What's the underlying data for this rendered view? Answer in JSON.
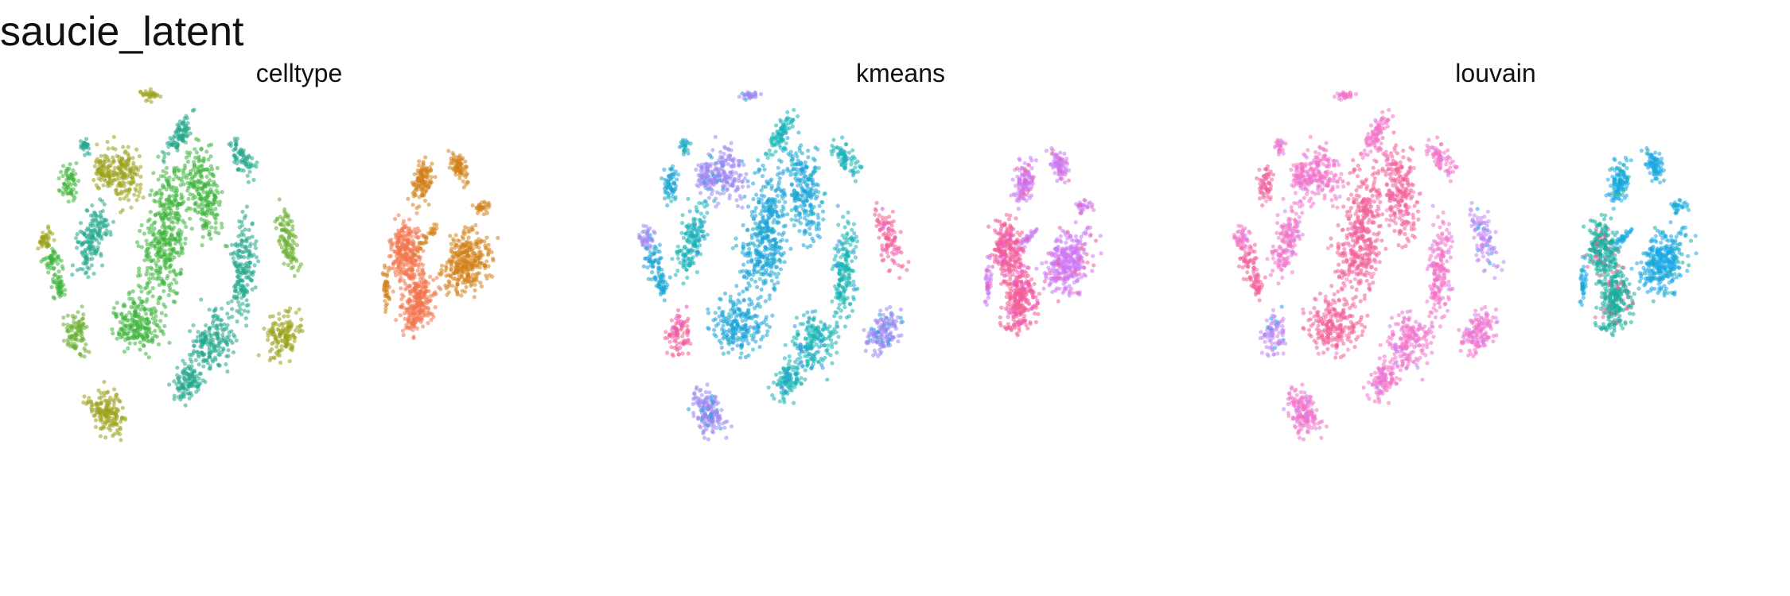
{
  "title": "saucie_latent",
  "chart_data": [
    {
      "type": "scatter",
      "title": "celltype",
      "xlabel": "",
      "ylabel": "",
      "axes": "hidden",
      "grid": false,
      "legend": "none",
      "palette": [
        "#9aa31c",
        "#3cb43a",
        "#23a88c",
        "#67ad2e",
        "#f2744c",
        "#d2821a"
      ]
    },
    {
      "type": "scatter",
      "title": "kmeans",
      "xlabel": "",
      "ylabel": "",
      "axes": "hidden",
      "grid": false,
      "legend": "none",
      "palette": [
        "#f35e95",
        "#ea4de0",
        "#9e86f2",
        "#1aa3d8",
        "#14b4b4",
        "#3e8ef0",
        "#cc79f5"
      ]
    },
    {
      "type": "scatter",
      "title": "louvain",
      "xlabel": "",
      "ylabel": "",
      "axes": "hidden",
      "grid": false,
      "legend": "none",
      "palette": [
        "#f35e95",
        "#f472c8",
        "#c486f5",
        "#1aa7e8",
        "#18ae9e"
      ]
    }
  ]
}
